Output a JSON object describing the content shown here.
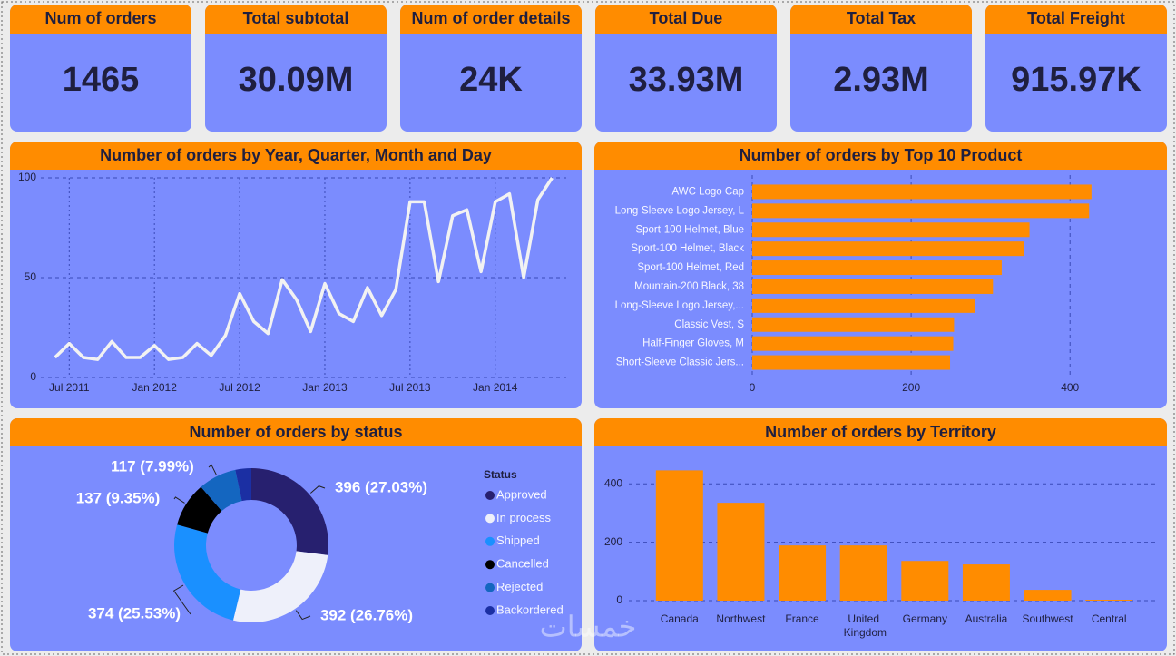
{
  "cards": [
    {
      "title": "Num of orders",
      "value": "1465"
    },
    {
      "title": "Total subtotal",
      "value": "30.09M"
    },
    {
      "title": "Num of order details",
      "value": "24K"
    },
    {
      "title": "Total Due",
      "value": "33.93M"
    },
    {
      "title": "Total Tax",
      "value": "2.93M"
    },
    {
      "title": "Total Freight",
      "value": "915.97K"
    }
  ],
  "watermark": "خمسات",
  "chart_data": [
    {
      "type": "line",
      "title": "Number of orders by Year, Quarter, Month and Day",
      "x": [
        "2011-06",
        "2011-07",
        "2011-08",
        "2011-09",
        "2011-10",
        "2011-11",
        "2011-12",
        "2012-01",
        "2012-02",
        "2012-03",
        "2012-04",
        "2012-05",
        "2012-06",
        "2012-07",
        "2012-08",
        "2012-09",
        "2012-10",
        "2012-11",
        "2012-12",
        "2013-01",
        "2013-02",
        "2013-03",
        "2013-04",
        "2013-05",
        "2013-06",
        "2013-07",
        "2013-08",
        "2013-09",
        "2013-10",
        "2013-11",
        "2013-12",
        "2014-01",
        "2014-02",
        "2014-03",
        "2014-04",
        "2014-05"
      ],
      "values": [
        10,
        17,
        10,
        9,
        18,
        10,
        10,
        16,
        9,
        10,
        17,
        11,
        21,
        42,
        28,
        22,
        49,
        39,
        23,
        47,
        32,
        28,
        45,
        31,
        44,
        88,
        88,
        48,
        81,
        84,
        53,
        88,
        92,
        50,
        89,
        100
      ],
      "color": "#f2f2f2",
      "xlim": [
        "2011-05",
        "2014-06"
      ],
      "xticks": [
        {
          "value": "2011-07",
          "label": "Jul 2011"
        },
        {
          "value": "2012-01",
          "label": "Jan 2012"
        },
        {
          "value": "2012-07",
          "label": "Jul 2012"
        },
        {
          "value": "2013-01",
          "label": "Jan 2013"
        },
        {
          "value": "2013-07",
          "label": "Jul 2013"
        },
        {
          "value": "2014-01",
          "label": "Jan 2014"
        }
      ],
      "ylim": [
        0,
        100
      ],
      "yticks": [
        0,
        50,
        100
      ],
      "grid": true
    },
    {
      "type": "bar",
      "orientation": "horizontal",
      "title": "Number of orders by Top 10 Product",
      "categories": [
        "AWC Logo Cap",
        "Long-Sleeve Logo Jersey, L",
        "Sport-100 Helmet, Blue",
        "Sport-100 Helmet, Black",
        "Sport-100 Helmet, Red",
        "Mountain-200 Black, 38",
        "Long-Sleeve Logo Jersey,...",
        "Classic Vest, S",
        "Half-Finger Gloves, M",
        "Short-Sleeve Classic Jers..."
      ],
      "values": [
        427,
        424,
        349,
        342,
        314,
        303,
        280,
        254,
        253,
        249
      ],
      "color": "#ff8c00",
      "xlim": [
        0,
        450
      ],
      "xticks": [
        0,
        200,
        400
      ],
      "grid": true
    },
    {
      "type": "donut",
      "title": "Number of orders by status",
      "legend_title": "Status",
      "categories": [
        "Approved",
        "In process",
        "Shipped",
        "Cancelled",
        "Rejected",
        "Backordered"
      ],
      "values": [
        396,
        392,
        374,
        137,
        117,
        49
      ],
      "value_labels": [
        "396 (27.03%)",
        "392 (26.76%)",
        "374 (25.53%)",
        "137 (9.35%)",
        "117 (7.99%)",
        null
      ],
      "colors": [
        "#27206f",
        "#eef0fa",
        "#1a90ff",
        "#000000",
        "#1466c0",
        "#1b2fa3"
      ]
    },
    {
      "type": "bar",
      "title": "Number of orders by Territory",
      "categories": [
        "Canada",
        "Northwest",
        "France",
        "United Kingdom",
        "Germany",
        "Australia",
        "Southwest",
        "Central"
      ],
      "values": [
        446,
        335,
        189,
        189,
        136,
        124,
        37,
        3
      ],
      "color": "#ff8c00",
      "ylim": [
        0,
        500
      ],
      "yticks": [
        0,
        200,
        400
      ],
      "grid": true
    }
  ]
}
